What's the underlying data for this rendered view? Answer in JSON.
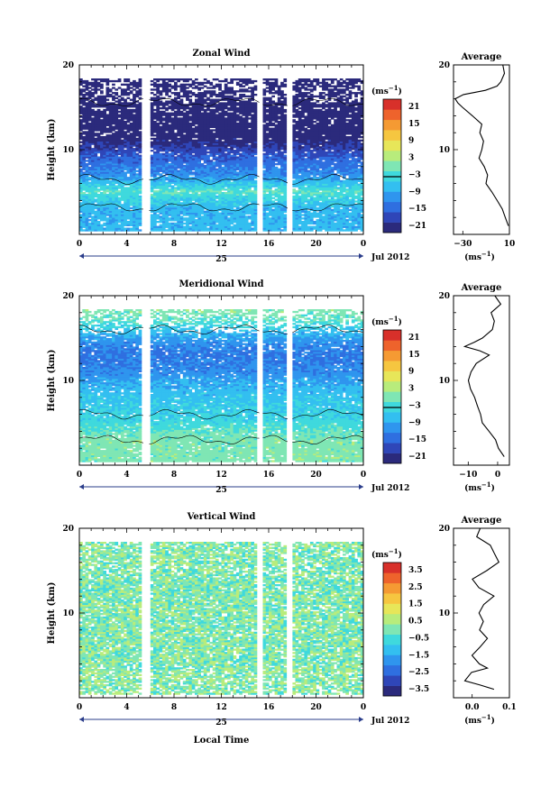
{
  "chart_data": [
    {
      "type": "heatmap",
      "title": "Zonal Wind",
      "ylabel": "Height (km)",
      "ylim": [
        0,
        20
      ],
      "y_ticks": [
        "10",
        "20"
      ],
      "xlim": [
        0,
        24
      ],
      "x_ticks": [
        "0",
        "4",
        "8",
        "12",
        "16",
        "20",
        "0"
      ],
      "date_day": "25",
      "date_month": "Jul 2012",
      "colorbar": {
        "unit": "(ms",
        "unit_exp": "−1",
        "unit_close": ")",
        "ticks": [
          "21",
          "15",
          "9",
          "3",
          "−3",
          "−9",
          "−15",
          "−21"
        ],
        "range": [
          -24,
          24
        ],
        "zero_line": 0
      },
      "data_gaps_hours": [
        [
          5.4,
          5.9
        ],
        [
          15.2,
          15.5
        ],
        [
          17.6,
          18.0
        ]
      ],
      "profile_levels_km": [
        3,
        5,
        7,
        9,
        11,
        13,
        15,
        16,
        17,
        18
      ],
      "profile_values": [
        -8,
        -2,
        -12,
        -16,
        -22,
        -26,
        -28,
        -30,
        -32,
        -24
      ],
      "average": {
        "title": "Average",
        "xlabel": "(ms",
        "xlabel_exp": "−1",
        "xlabel_close": ")",
        "x_ticks": [
          "−30",
          "10"
        ],
        "xlim": [
          -38,
          10
        ],
        "y_ticks": [
          "10",
          "20"
        ],
        "profile": [
          [
            1,
            9
          ],
          [
            2,
            7
          ],
          [
            3,
            4
          ],
          [
            4,
            0
          ],
          [
            5,
            -5
          ],
          [
            6,
            -10
          ],
          [
            7,
            -8
          ],
          [
            8,
            -12
          ],
          [
            9,
            -16
          ],
          [
            10,
            -14
          ],
          [
            11,
            -12
          ],
          [
            12,
            -16
          ],
          [
            13,
            -14
          ],
          [
            14,
            -22
          ],
          [
            15,
            -30
          ],
          [
            15.5,
            -34
          ],
          [
            16,
            -36
          ],
          [
            16.5,
            -30
          ],
          [
            17,
            -10
          ],
          [
            17.5,
            0
          ],
          [
            18,
            3
          ],
          [
            19,
            6
          ],
          [
            20,
            5
          ]
        ]
      }
    },
    {
      "type": "heatmap",
      "title": "Meridional Wind",
      "ylabel": "Height (km)",
      "ylim": [
        0,
        20
      ],
      "y_ticks": [
        "10",
        "20"
      ],
      "xlim": [
        0,
        24
      ],
      "x_ticks": [
        "0",
        "4",
        "8",
        "12",
        "16",
        "20",
        "0"
      ],
      "date_day": "25",
      "date_month": "Jul 2012",
      "colorbar": {
        "unit": "(ms",
        "unit_exp": "−1",
        "unit_close": ")",
        "ticks": [
          "21",
          "15",
          "9",
          "3",
          "−3",
          "−9",
          "−15",
          "−21"
        ],
        "range": [
          -24,
          24
        ],
        "zero_line": 0
      },
      "data_gaps_hours": [
        [
          5.4,
          5.9
        ],
        [
          15.2,
          15.5
        ],
        [
          17.6,
          18.0
        ]
      ],
      "profile_levels_km": [
        3,
        5,
        7,
        9,
        11,
        13,
        15,
        16,
        17,
        18
      ],
      "profile_values": [
        0,
        -4,
        -6,
        -8,
        -12,
        -14,
        -10,
        -6,
        -2,
        0
      ],
      "average": {
        "title": "Average",
        "xlabel": "(ms",
        "xlabel_exp": "−1",
        "xlabel_close": ")",
        "x_ticks": [
          "−10",
          "0"
        ],
        "xlim": [
          -15,
          4
        ],
        "y_ticks": [
          "10",
          "20"
        ],
        "profile": [
          [
            1,
            2
          ],
          [
            2,
            0
          ],
          [
            3,
            -1
          ],
          [
            4,
            -3
          ],
          [
            5,
            -5
          ],
          [
            6,
            -6
          ],
          [
            7,
            -7
          ],
          [
            8,
            -8
          ],
          [
            9,
            -9
          ],
          [
            10,
            -10
          ],
          [
            11,
            -9
          ],
          [
            12,
            -7
          ],
          [
            13,
            -3
          ],
          [
            13.5,
            -6
          ],
          [
            14,
            -11
          ],
          [
            14.5,
            -8
          ],
          [
            15,
            -5
          ],
          [
            16,
            -2
          ],
          [
            17,
            -1
          ],
          [
            18,
            -2
          ],
          [
            19,
            1
          ],
          [
            20,
            -1
          ]
        ]
      }
    },
    {
      "type": "heatmap",
      "title": "Vertical Wind",
      "ylabel": "Height (km)",
      "ylim": [
        0,
        20
      ],
      "y_ticks": [
        "10",
        "20"
      ],
      "xlim": [
        0,
        24
      ],
      "x_ticks": [
        "0",
        "4",
        "8",
        "12",
        "16",
        "20",
        "0"
      ],
      "date_day": "25",
      "date_month": "Jul 2012",
      "xlabel": "Local Time",
      "colorbar": {
        "unit": "(ms",
        "unit_exp": "−1",
        "unit_close": ")",
        "ticks": [
          "3.5",
          "2.5",
          "1.5",
          "0.5",
          "−0.5",
          "−1.5",
          "−2.5",
          "−3.5"
        ],
        "range": [
          -4,
          4
        ],
        "zero_line": null
      },
      "data_gaps_hours": [
        [
          5.4,
          5.9
        ],
        [
          15.2,
          15.5
        ],
        [
          17.6,
          18.0
        ]
      ],
      "profile_levels_km": [
        2,
        6,
        10,
        14,
        18
      ],
      "profile_values": [
        0.1,
        0.0,
        0.05,
        -0.05,
        0.1
      ],
      "average": {
        "title": "Average",
        "xlabel": "(ms",
        "xlabel_exp": "−1",
        "xlabel_close": ")",
        "x_ticks": [
          "0.0",
          "0.1"
        ],
        "xlim": [
          -0.05,
          0.1
        ],
        "y_ticks": [
          "10",
          "20"
        ],
        "profile": [
          [
            1,
            0.06
          ],
          [
            1.5,
            0.02
          ],
          [
            2,
            -0.02
          ],
          [
            3,
            0.0
          ],
          [
            3.5,
            0.04
          ],
          [
            4,
            0.02
          ],
          [
            5,
            0.0
          ],
          [
            6,
            0.02
          ],
          [
            7,
            0.04
          ],
          [
            8,
            0.02
          ],
          [
            9,
            0.03
          ],
          [
            10,
            0.02
          ],
          [
            11,
            0.03
          ],
          [
            12,
            0.06
          ],
          [
            13,
            0.02
          ],
          [
            14,
            0.0
          ],
          [
            15,
            0.04
          ],
          [
            16,
            0.07
          ],
          [
            17,
            0.06
          ],
          [
            18,
            0.05
          ],
          [
            19,
            0.01
          ],
          [
            20,
            0.02
          ]
        ]
      }
    }
  ],
  "colors": {
    "scale": [
      "#2b2a7c",
      "#2f46b8",
      "#2f6fe0",
      "#2f95ee",
      "#33bff0",
      "#3fd9dd",
      "#7fe6b4",
      "#b8ec7c",
      "#e7e659",
      "#f6c640",
      "#f59a33",
      "#ee632c",
      "#d8302a"
    ]
  }
}
